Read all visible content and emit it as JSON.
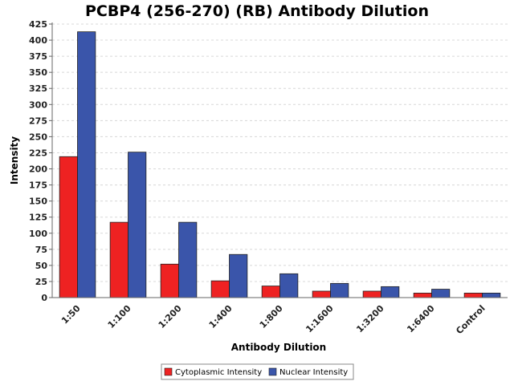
{
  "chart_data": {
    "type": "bar",
    "title": "PCBP4 (256-270) (RB) Antibody Dilution",
    "xlabel": "Antibody Dilution",
    "ylabel": "Intensity",
    "categories": [
      "1:50",
      "1:100",
      "1:200",
      "1:400",
      "1:800",
      "1:1600",
      "1:3200",
      "1:6400",
      "Control"
    ],
    "series": [
      {
        "name": "Cytoplasmic Intensity",
        "color": "#ee2222",
        "values": [
          219,
          117,
          52,
          26,
          18,
          10,
          10,
          7,
          7
        ]
      },
      {
        "name": "Nuclear Intensity",
        "color": "#3a55aa",
        "values": [
          413,
          226,
          117,
          67,
          37,
          22,
          17,
          13,
          7
        ]
      }
    ],
    "ylim": [
      0,
      425
    ],
    "yticks": [
      0,
      25,
      50,
      75,
      100,
      125,
      150,
      175,
      200,
      225,
      250,
      275,
      300,
      325,
      350,
      375,
      400,
      425
    ],
    "grid": true,
    "legend_position": "bottom-center"
  }
}
